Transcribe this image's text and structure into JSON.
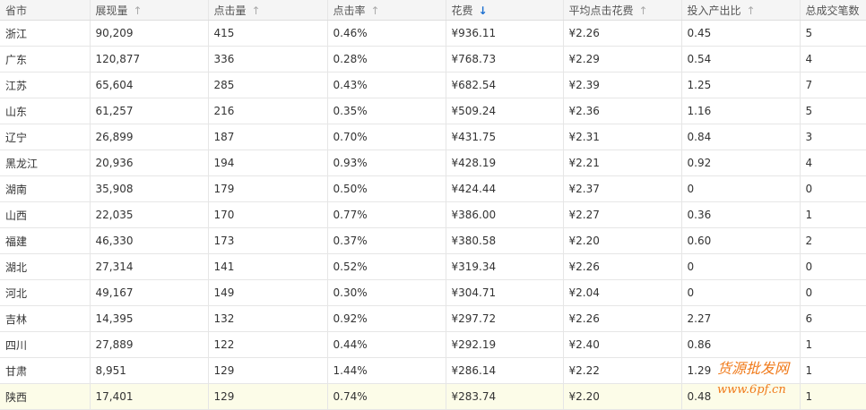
{
  "headers": [
    {
      "label": "省市",
      "sort": ""
    },
    {
      "label": "展现量",
      "sort": "↑"
    },
    {
      "label": "点击量",
      "sort": "↑"
    },
    {
      "label": "点击率",
      "sort": "↑"
    },
    {
      "label": "花费",
      "sort": "↓",
      "active": true
    },
    {
      "label": "平均点击花费",
      "sort": "↑"
    },
    {
      "label": "投入产出比",
      "sort": "↑"
    },
    {
      "label": "总成交笔数",
      "sort": ""
    }
  ],
  "rows": [
    [
      "浙江",
      "90,209",
      "415",
      "0.46%",
      "¥936.11",
      "¥2.26",
      "0.45",
      "5"
    ],
    [
      "广东",
      "120,877",
      "336",
      "0.28%",
      "¥768.73",
      "¥2.29",
      "0.54",
      "4"
    ],
    [
      "江苏",
      "65,604",
      "285",
      "0.43%",
      "¥682.54",
      "¥2.39",
      "1.25",
      "7"
    ],
    [
      "山东",
      "61,257",
      "216",
      "0.35%",
      "¥509.24",
      "¥2.36",
      "1.16",
      "5"
    ],
    [
      "辽宁",
      "26,899",
      "187",
      "0.70%",
      "¥431.75",
      "¥2.31",
      "0.84",
      "3"
    ],
    [
      "黑龙江",
      "20,936",
      "194",
      "0.93%",
      "¥428.19",
      "¥2.21",
      "0.92",
      "4"
    ],
    [
      "湖南",
      "35,908",
      "179",
      "0.50%",
      "¥424.44",
      "¥2.37",
      "0",
      "0"
    ],
    [
      "山西",
      "22,035",
      "170",
      "0.77%",
      "¥386.00",
      "¥2.27",
      "0.36",
      "1"
    ],
    [
      "福建",
      "46,330",
      "173",
      "0.37%",
      "¥380.58",
      "¥2.20",
      "0.60",
      "2"
    ],
    [
      "湖北",
      "27,314",
      "141",
      "0.52%",
      "¥319.34",
      "¥2.26",
      "0",
      "0"
    ],
    [
      "河北",
      "49,167",
      "149",
      "0.30%",
      "¥304.71",
      "¥2.04",
      "0",
      "0"
    ],
    [
      "吉林",
      "14,395",
      "132",
      "0.92%",
      "¥297.72",
      "¥2.26",
      "2.27",
      "6"
    ],
    [
      "四川",
      "27,889",
      "122",
      "0.44%",
      "¥292.19",
      "¥2.40",
      "0.86",
      "1"
    ],
    [
      "甘肃",
      "8,951",
      "129",
      "1.44%",
      "¥286.14",
      "¥2.22",
      "1.29",
      "1"
    ],
    [
      "陕西",
      "17,401",
      "129",
      "0.74%",
      "¥283.74",
      "¥2.20",
      "0.48",
      "1"
    ]
  ],
  "highlight_row": 14,
  "watermark": {
    "line1": "货源批发网",
    "line2": "www.6pf.cn"
  },
  "colors": {
    "sort_active": "#1b6fd0",
    "highlight": "#fcfce8",
    "watermark": "#f07a1a"
  }
}
